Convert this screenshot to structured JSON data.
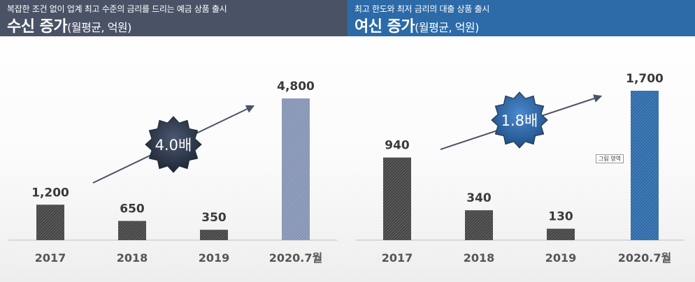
{
  "panels": [
    {
      "subtitle": "복잡한 조건 없이 업계 최고 수준의 금리를 드리는 예금 상품 출시",
      "title": "수신 증가",
      "title_unit": "(월평균, 억원)",
      "multiplier": "4.0배",
      "banner_color": "#4a5366"
    },
    {
      "subtitle": "최고 한도와 최저 금리의 대출 상품 출시",
      "title": "여신 증가",
      "title_unit": "(월평균, 억원)",
      "multiplier": "1.8배",
      "banner_color": "#2c6aa8",
      "note": "그림 영역"
    }
  ],
  "chart_data": [
    {
      "type": "bar",
      "title": "수신 증가(월평균, 억원)",
      "categories": [
        "2017",
        "2018",
        "2019",
        "2020.7월"
      ],
      "values": [
        1200,
        650,
        350,
        4800
      ],
      "labels": [
        "1,200",
        "650",
        "350",
        "4,800"
      ],
      "ylim": [
        0,
        4800
      ],
      "grid": false,
      "bar_colors": [
        "#444444",
        "#444444",
        "#444444",
        "#8594b4"
      ],
      "multiplier": "4.0배"
    },
    {
      "type": "bar",
      "title": "여신 증가(월평균, 억원)",
      "categories": [
        "2017",
        "2018",
        "2019",
        "2020.7월"
      ],
      "values": [
        940,
        340,
        130,
        1700
      ],
      "labels": [
        "940",
        "340",
        "130",
        "1,700"
      ],
      "ylim": [
        0,
        1700
      ],
      "grid": false,
      "bar_colors": [
        "#444444",
        "#444444",
        "#444444",
        "#2c6aa8"
      ],
      "multiplier": "1.8배"
    }
  ]
}
